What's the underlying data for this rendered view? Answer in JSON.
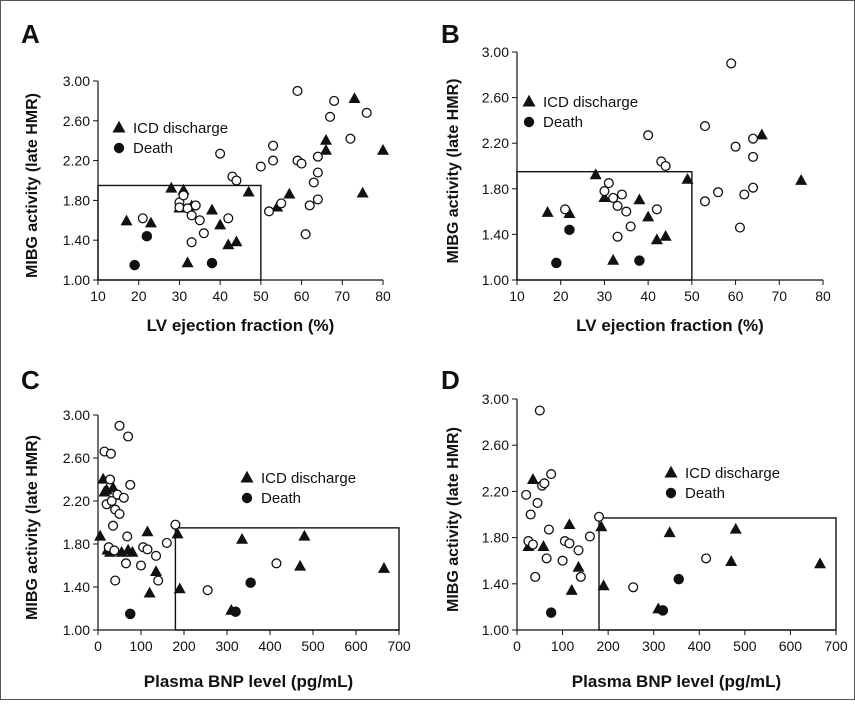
{
  "figure": {
    "panel_labels": [
      "A",
      "B",
      "C",
      "D"
    ]
  },
  "style": {
    "marker_color": "#111111",
    "axis_color": "#111111",
    "background": "#ffffff"
  },
  "chart_data": [
    {
      "panel": "A",
      "type": "scatter",
      "xlabel": "LV ejection fraction (%)",
      "ylabel": "MIBG activity (late HMR)",
      "xlim": [
        10,
        80
      ],
      "ylim": [
        1.0,
        3.0
      ],
      "xticks": [
        "10",
        "20",
        "30",
        "40",
        "50",
        "60",
        "70",
        "80"
      ],
      "yticks": [
        "1.00",
        "1.40",
        "1.80",
        "2.20",
        "2.60",
        "3.00"
      ],
      "grid": false,
      "legend_position": "left",
      "legend": [
        {
          "marker": "triangle",
          "label": "ICD discharge"
        },
        {
          "marker": "circle",
          "label": "Death"
        }
      ],
      "cutoff_box": {
        "x": [
          10,
          50
        ],
        "y": [
          1.0,
          1.95
        ]
      },
      "series": [
        {
          "name": "ICD discharge",
          "marker": "triangle",
          "points": [
            [
              17,
              1.59
            ],
            [
              23,
              1.57
            ],
            [
              28,
              1.92
            ],
            [
              30,
              1.72
            ],
            [
              31,
              1.9
            ],
            [
              32,
              1.17
            ],
            [
              33,
              1.74
            ],
            [
              38,
              1.7
            ],
            [
              40,
              1.55
            ],
            [
              42,
              1.35
            ],
            [
              44,
              1.38
            ],
            [
              47,
              1.88
            ],
            [
              54,
              1.73
            ],
            [
              57,
              1.86
            ],
            [
              66,
              2.3
            ],
            [
              66,
              2.4
            ],
            [
              73,
              2.82
            ],
            [
              75,
              1.87
            ],
            [
              80,
              2.3
            ]
          ]
        },
        {
          "name": "Death",
          "marker": "circle-filled",
          "points": [
            [
              19,
              1.15
            ],
            [
              22,
              1.44
            ],
            [
              38,
              1.17
            ]
          ]
        },
        {
          "name": "Other",
          "marker": "circle-open",
          "points": [
            [
              21,
              1.62
            ],
            [
              30,
              1.78
            ],
            [
              30,
              1.73
            ],
            [
              31,
              1.85
            ],
            [
              32,
              1.72
            ],
            [
              33,
              1.65
            ],
            [
              33,
              1.38
            ],
            [
              34,
              1.75
            ],
            [
              35,
              1.6
            ],
            [
              36,
              1.47
            ],
            [
              40,
              2.27
            ],
            [
              42,
              1.62
            ],
            [
              43,
              2.04
            ],
            [
              44,
              2.0
            ],
            [
              50,
              2.14
            ],
            [
              52,
              1.69
            ],
            [
              53,
              2.35
            ],
            [
              53,
              2.2
            ],
            [
              55,
              1.77
            ],
            [
              59,
              2.9
            ],
            [
              59,
              2.2
            ],
            [
              60,
              2.17
            ],
            [
              61,
              1.46
            ],
            [
              62,
              1.75
            ],
            [
              63,
              1.98
            ],
            [
              64,
              2.24
            ],
            [
              64,
              2.08
            ],
            [
              64,
              1.81
            ],
            [
              67,
              2.64
            ],
            [
              68,
              2.8
            ],
            [
              72,
              2.42
            ],
            [
              76,
              2.68
            ]
          ]
        }
      ]
    },
    {
      "panel": "B",
      "type": "scatter",
      "xlabel": "LV ejection fraction (%)",
      "ylabel": "MIBG activity (late HMR)",
      "xlim": [
        10,
        80
      ],
      "ylim": [
        1.0,
        3.0
      ],
      "xticks": [
        "10",
        "20",
        "30",
        "40",
        "50",
        "60",
        "70",
        "80"
      ],
      "yticks": [
        "1.00",
        "1.40",
        "1.80",
        "2.20",
        "2.60",
        "3.00"
      ],
      "grid": false,
      "legend_position": "top-left",
      "legend": [
        {
          "marker": "triangle",
          "label": "ICD discharge"
        },
        {
          "marker": "circle",
          "label": "Death"
        }
      ],
      "cutoff_box": {
        "x": [
          10,
          50
        ],
        "y": [
          1.0,
          1.95
        ]
      },
      "series": [
        {
          "name": "ICD discharge",
          "marker": "triangle",
          "points": [
            [
              17,
              1.59
            ],
            [
              22,
              1.58
            ],
            [
              28,
              1.92
            ],
            [
              30,
              1.72
            ],
            [
              32,
              1.17
            ],
            [
              38,
              1.7
            ],
            [
              40,
              1.55
            ],
            [
              42,
              1.35
            ],
            [
              44,
              1.38
            ],
            [
              49,
              1.88
            ],
            [
              66,
              2.27
            ],
            [
              75,
              1.87
            ]
          ]
        },
        {
          "name": "Death",
          "marker": "circle-filled",
          "points": [
            [
              19,
              1.15
            ],
            [
              22,
              1.44
            ],
            [
              38,
              1.17
            ]
          ]
        },
        {
          "name": "Other",
          "marker": "circle-open",
          "points": [
            [
              21,
              1.62
            ],
            [
              30,
              1.78
            ],
            [
              31,
              1.85
            ],
            [
              32,
              1.72
            ],
            [
              33,
              1.65
            ],
            [
              33,
              1.38
            ],
            [
              34,
              1.75
            ],
            [
              35,
              1.6
            ],
            [
              36,
              1.47
            ],
            [
              40,
              2.27
            ],
            [
              42,
              1.62
            ],
            [
              43,
              2.04
            ],
            [
              44,
              2.0
            ],
            [
              53,
              2.35
            ],
            [
              53,
              1.69
            ],
            [
              56,
              1.77
            ],
            [
              59,
              2.9
            ],
            [
              60,
              2.17
            ],
            [
              61,
              1.46
            ],
            [
              62,
              1.75
            ],
            [
              64,
              2.24
            ],
            [
              64,
              2.08
            ],
            [
              64,
              1.81
            ]
          ]
        }
      ]
    },
    {
      "panel": "C",
      "type": "scatter",
      "xlabel": "Plasma BNP level (pg/mL)",
      "ylabel": "MIBG activity (late HMR)",
      "xlim": [
        0,
        700
      ],
      "ylim": [
        1.0,
        3.0
      ],
      "xticks": [
        "0",
        "100",
        "200",
        "300",
        "400",
        "500",
        "600",
        "700"
      ],
      "yticks": [
        "1.00",
        "1.40",
        "1.80",
        "2.20",
        "2.60",
        "3.00"
      ],
      "grid": false,
      "legend_position": "right",
      "legend": [
        {
          "marker": "triangle",
          "label": "ICD discharge"
        },
        {
          "marker": "circle",
          "label": "Death"
        }
      ],
      "cutoff_box": {
        "x": [
          180,
          700
        ],
        "y": [
          1.0,
          1.95
        ]
      },
      "series": [
        {
          "name": "ICD discharge",
          "marker": "triangle",
          "points": [
            [
              5,
              1.87
            ],
            [
              12,
              2.4
            ],
            [
              15,
              2.28
            ],
            [
              20,
              2.3
            ],
            [
              22,
              1.74
            ],
            [
              28,
              1.72
            ],
            [
              35,
              2.32
            ],
            [
              45,
              2.25
            ],
            [
              55,
              1.72
            ],
            [
              70,
              1.74
            ],
            [
              80,
              1.72
            ],
            [
              115,
              1.91
            ],
            [
              120,
              1.34
            ],
            [
              135,
              1.54
            ],
            [
              185,
              1.89
            ],
            [
              190,
              1.38
            ],
            [
              310,
              1.18
            ],
            [
              335,
              1.84
            ],
            [
              470,
              1.59
            ],
            [
              480,
              1.87
            ],
            [
              665,
              1.57
            ]
          ]
        },
        {
          "name": "Death",
          "marker": "circle-filled",
          "points": [
            [
              75,
              1.15
            ],
            [
              320,
              1.17
            ],
            [
              355,
              1.44
            ]
          ]
        },
        {
          "name": "Other",
          "marker": "circle-open",
          "points": [
            [
              15,
              2.66
            ],
            [
              20,
              2.17
            ],
            [
              25,
              1.77
            ],
            [
              28,
              2.4
            ],
            [
              30,
              2.64
            ],
            [
              32,
              2.2
            ],
            [
              35,
              1.97
            ],
            [
              38,
              1.74
            ],
            [
              40,
              2.12
            ],
            [
              40,
              1.46
            ],
            [
              45,
              2.26
            ],
            [
              50,
              2.9
            ],
            [
              50,
              2.08
            ],
            [
              60,
              2.23
            ],
            [
              65,
              1.62
            ],
            [
              68,
              1.87
            ],
            [
              70,
              2.8
            ],
            [
              75,
              2.35
            ],
            [
              100,
              1.6
            ],
            [
              105,
              1.77
            ],
            [
              115,
              1.75
            ],
            [
              135,
              1.69
            ],
            [
              140,
              1.46
            ],
            [
              160,
              1.81
            ],
            [
              180,
              1.98
            ],
            [
              255,
              1.37
            ],
            [
              415,
              1.62
            ]
          ]
        }
      ]
    },
    {
      "panel": "D",
      "type": "scatter",
      "xlabel": "Plasma BNP level (pg/mL)",
      "ylabel": "MIBG activity (late HMR)",
      "xlim": [
        0,
        700
      ],
      "ylim": [
        1.0,
        3.0
      ],
      "xticks": [
        "0",
        "100",
        "200",
        "300",
        "400",
        "500",
        "600",
        "700"
      ],
      "yticks": [
        "1.00",
        "1.40",
        "1.80",
        "2.20",
        "2.60",
        "3.00"
      ],
      "grid": false,
      "legend_position": "right",
      "legend": [
        {
          "marker": "triangle",
          "label": "ICD discharge"
        },
        {
          "marker": "circle",
          "label": "Death"
        }
      ],
      "cutoff_box": {
        "x": [
          180,
          700
        ],
        "y": [
          1.0,
          1.97
        ]
      },
      "series": [
        {
          "name": "ICD discharge",
          "marker": "triangle",
          "points": [
            [
              25,
              1.72
            ],
            [
              35,
              2.3
            ],
            [
              58,
              1.72
            ],
            [
              115,
              1.91
            ],
            [
              120,
              1.34
            ],
            [
              135,
              1.54
            ],
            [
              185,
              1.89
            ],
            [
              190,
              1.38
            ],
            [
              310,
              1.18
            ],
            [
              335,
              1.84
            ],
            [
              470,
              1.59
            ],
            [
              480,
              1.87
            ],
            [
              665,
              1.57
            ]
          ]
        },
        {
          "name": "Death",
          "marker": "circle-filled",
          "points": [
            [
              75,
              1.15
            ],
            [
              320,
              1.17
            ],
            [
              355,
              1.44
            ]
          ]
        },
        {
          "name": "Other",
          "marker": "circle-open",
          "points": [
            [
              20,
              2.17
            ],
            [
              25,
              1.77
            ],
            [
              30,
              2.0
            ],
            [
              35,
              1.74
            ],
            [
              40,
              1.46
            ],
            [
              45,
              2.1
            ],
            [
              50,
              2.9
            ],
            [
              55,
              2.25
            ],
            [
              60,
              2.27
            ],
            [
              65,
              1.62
            ],
            [
              70,
              1.87
            ],
            [
              75,
              2.35
            ],
            [
              100,
              1.6
            ],
            [
              105,
              1.77
            ],
            [
              115,
              1.75
            ],
            [
              135,
              1.69
            ],
            [
              140,
              1.46
            ],
            [
              160,
              1.81
            ],
            [
              180,
              1.98
            ],
            [
              255,
              1.37
            ],
            [
              415,
              1.62
            ]
          ]
        }
      ]
    }
  ]
}
